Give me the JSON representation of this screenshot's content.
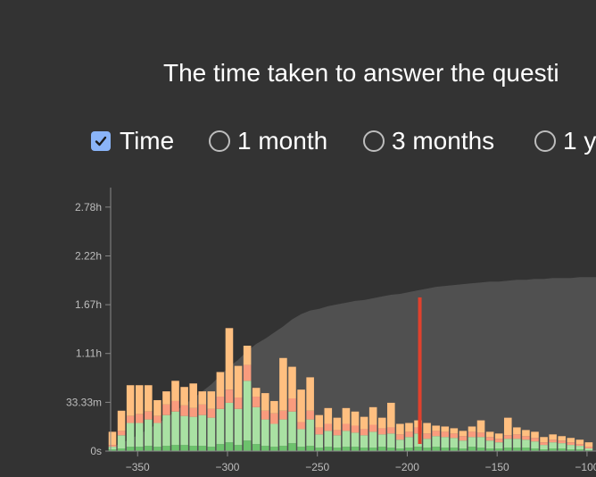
{
  "title": "The time taken to answer the questi",
  "options": [
    {
      "label": "Time",
      "checked": true,
      "type": "checkbox"
    },
    {
      "label": "1 month",
      "checked": false,
      "type": "radio"
    },
    {
      "label": "3 months",
      "checked": false,
      "type": "radio"
    },
    {
      "label": "1 y",
      "checked": false,
      "type": "radio"
    }
  ],
  "chart_data": {
    "type": "bar",
    "title": "",
    "xlabel": "",
    "ylabel": "",
    "xlim": [
      -365,
      -95
    ],
    "ylim_hours": [
      0,
      3.0
    ],
    "x_ticks": [
      -350,
      -300,
      -250,
      -200,
      -150,
      -100
    ],
    "x_tick_labels": [
      "−350",
      "−300",
      "−250",
      "−200",
      "−150",
      "−100"
    ],
    "y_ticks": [
      0,
      0.5556,
      1.1111,
      1.6667,
      2.2222,
      2.7778
    ],
    "y_tick_labels": [
      "0s",
      "33.33m",
      "1.11h",
      "1.67h",
      "2.22h",
      "2.78h"
    ],
    "grid": false,
    "colors": {
      "young": "#ffbf80",
      "mature": "#a9e1a3",
      "relearn": "#f99b7d",
      "learn": "#6cc26c",
      "cumulative_area": "#505050",
      "marker": "#e0412d",
      "axis": "#888888",
      "tick_text": "#bdbdbd"
    },
    "x": [
      -364,
      -359,
      -354,
      -349,
      -344,
      -339,
      -334,
      -329,
      -324,
      -319,
      -314,
      -309,
      -304,
      -299,
      -294,
      -289,
      -284,
      -279,
      -274,
      -269,
      -264,
      -259,
      -254,
      -249,
      -244,
      -239,
      -234,
      -229,
      -224,
      -219,
      -214,
      -209,
      -204,
      -199,
      -194,
      -189,
      -184,
      -179,
      -174,
      -169,
      -164,
      -159,
      -154,
      -149,
      -144,
      -139,
      -134,
      -129,
      -124,
      -119,
      -114,
      -109,
      -104,
      -99
    ],
    "series": [
      {
        "name": "",
        "color": "#6cc26c",
        "values": [
          0.02,
          0.03,
          0.05,
          0.05,
          0.06,
          0.05,
          0.06,
          0.07,
          0.07,
          0.06,
          0.06,
          0.05,
          0.08,
          0.1,
          0.07,
          0.12,
          0.08,
          0.06,
          0.05,
          0.06,
          0.09,
          0.05,
          0.06,
          0.04,
          0.05,
          0.04,
          0.05,
          0.05,
          0.04,
          0.04,
          0.05,
          0.04,
          0.03,
          0.04,
          0.05,
          0.04,
          0.05,
          0.04,
          0.04,
          0.03,
          0.05,
          0.04,
          0.03,
          0.03,
          0.04,
          0.04,
          0.04,
          0.03,
          0.02,
          0.03,
          0.03,
          0.02,
          0.02,
          0.01
        ]
      },
      {
        "name": "",
        "color": "#a9e1a3",
        "values": [
          0.03,
          0.15,
          0.27,
          0.27,
          0.3,
          0.27,
          0.35,
          0.38,
          0.33,
          0.33,
          0.35,
          0.33,
          0.4,
          0.45,
          0.41,
          0.68,
          0.42,
          0.3,
          0.26,
          0.3,
          0.36,
          0.2,
          0.3,
          0.15,
          0.18,
          0.14,
          0.18,
          0.16,
          0.14,
          0.18,
          0.14,
          0.16,
          0.1,
          0.12,
          0.15,
          0.1,
          0.12,
          0.12,
          0.11,
          0.09,
          0.11,
          0.12,
          0.09,
          0.07,
          0.1,
          0.1,
          0.09,
          0.08,
          0.05,
          0.07,
          0.06,
          0.05,
          0.04,
          0.02
        ]
      },
      {
        "name": "",
        "color": "#f99b7d",
        "values": [
          0.02,
          0.05,
          0.08,
          0.1,
          0.09,
          0.08,
          0.12,
          0.12,
          0.12,
          0.1,
          0.12,
          0.1,
          0.14,
          0.15,
          0.13,
          0.18,
          0.12,
          0.1,
          0.12,
          0.1,
          0.15,
          0.08,
          0.1,
          0.08,
          0.08,
          0.06,
          0.08,
          0.08,
          0.07,
          0.08,
          0.07,
          0.07,
          0.06,
          0.06,
          0.07,
          0.06,
          0.06,
          0.06,
          0.05,
          0.05,
          0.06,
          0.05,
          0.04,
          0.04,
          0.04,
          0.05,
          0.04,
          0.04,
          0.03,
          0.03,
          0.03,
          0.03,
          0.02,
          0.02
        ]
      },
      {
        "name": "",
        "color": "#ffbf80",
        "values": [
          0.15,
          0.23,
          0.35,
          0.33,
          0.3,
          0.18,
          0.15,
          0.23,
          0.21,
          0.28,
          0.15,
          0.2,
          0.28,
          0.7,
          0.36,
          0.22,
          0.1,
          0.2,
          0.14,
          0.6,
          0.36,
          0.37,
          0.38,
          0.14,
          0.18,
          0.14,
          0.18,
          0.16,
          0.14,
          0.2,
          0.12,
          0.28,
          0.12,
          0.1,
          0.08,
          0.12,
          0.06,
          0.06,
          0.06,
          0.06,
          0.06,
          0.14,
          0.06,
          0.06,
          0.2,
          0.08,
          0.07,
          0.07,
          0.06,
          0.06,
          0.05,
          0.05,
          0.05,
          0.05
        ]
      }
    ],
    "cumulative_hours": [
      0.05,
      0.09,
      0.14,
      0.19,
      0.25,
      0.31,
      0.38,
      0.45,
      0.53,
      0.6,
      0.68,
      0.76,
      0.86,
      0.96,
      1.04,
      1.14,
      1.22,
      1.28,
      1.35,
      1.42,
      1.5,
      1.56,
      1.6,
      1.62,
      1.65,
      1.67,
      1.69,
      1.71,
      1.72,
      1.74,
      1.76,
      1.78,
      1.79,
      1.81,
      1.83,
      1.85,
      1.87,
      1.88,
      1.89,
      1.9,
      1.91,
      1.92,
      1.93,
      1.93,
      1.94,
      1.95,
      1.95,
      1.96,
      1.96,
      1.97,
      1.97,
      1.97,
      1.98,
      1.98
    ],
    "marker": {
      "x": -193,
      "y": 1.75
    }
  }
}
